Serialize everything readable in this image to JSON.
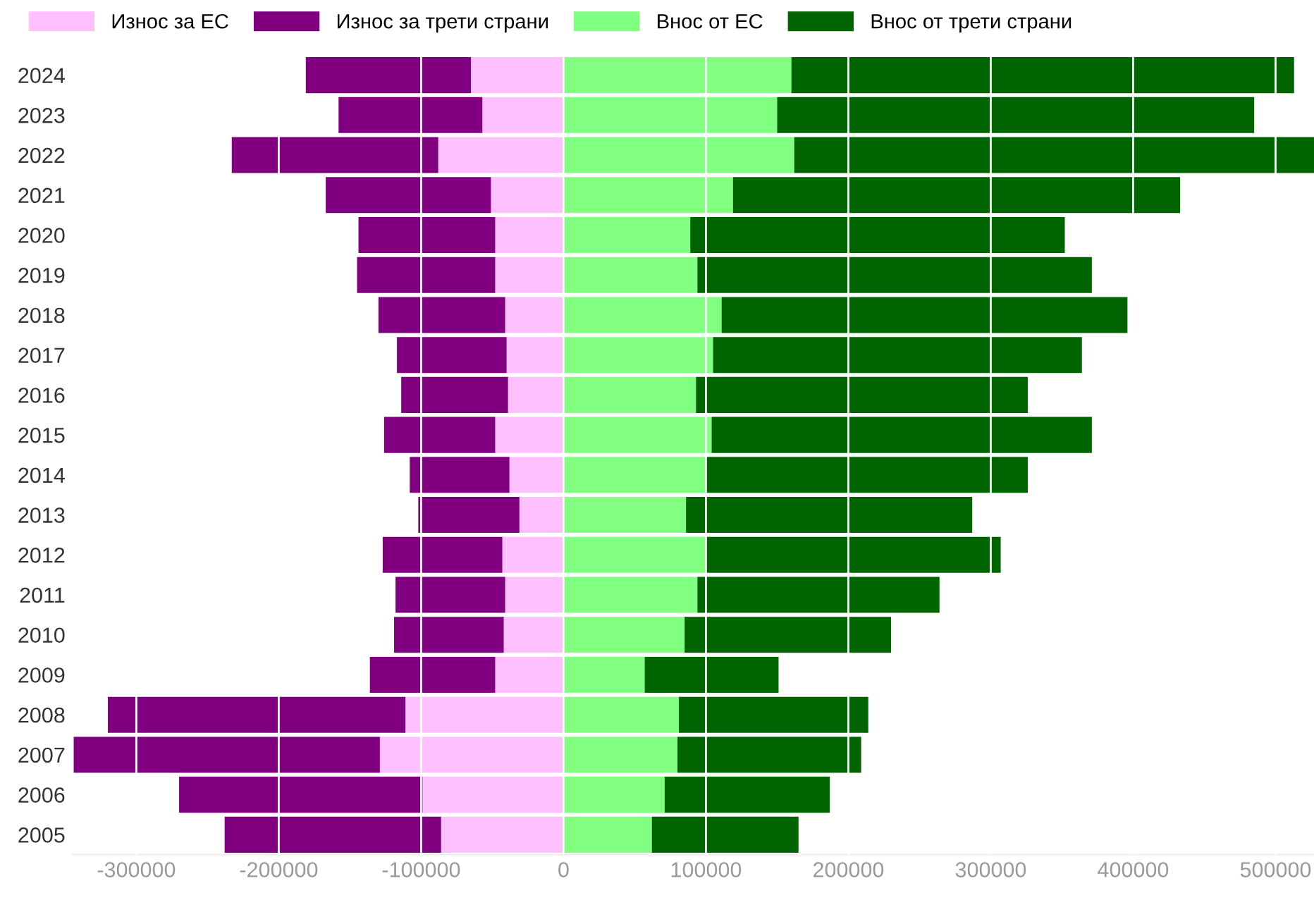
{
  "chart_data": {
    "type": "bar",
    "orientation": "horizontal",
    "stacked": true,
    "legend": "top left",
    "grid": "x",
    "categories": [
      "2024",
      "2023",
      "2022",
      "2021",
      "2020",
      "2019",
      "2018",
      "2017",
      "2016",
      "2015",
      "2014",
      "2013",
      "2012",
      "2011",
      "2010",
      "2009",
      "2008",
      "2007",
      "2006",
      "2005"
    ],
    "series": [
      {
        "name": "Износ за ЕС",
        "color": "#ffc0ff",
        "values": [
          -65000,
          -57000,
          -88000,
          -51000,
          -48000,
          -48000,
          -41000,
          -40000,
          -39000,
          -48000,
          -38000,
          -31000,
          -43000,
          -41000,
          -42000,
          -48000,
          -111000,
          -129000,
          -99000,
          -86000
        ]
      },
      {
        "name": "Износ за трети страни",
        "color": "#800080",
        "values": [
          -116000,
          -101000,
          -145000,
          -116000,
          -96000,
          -97000,
          -89000,
          -77000,
          -75000,
          -78000,
          -70000,
          -71000,
          -84000,
          -77000,
          -77000,
          -88000,
          -209000,
          -215000,
          -171000,
          -152000
        ]
      },
      {
        "name": "Внос от ЕС",
        "color": "#80ff80",
        "values": [
          160000,
          150000,
          162000,
          119000,
          89000,
          94000,
          111000,
          105000,
          93000,
          104000,
          100000,
          86000,
          100000,
          94000,
          85000,
          57000,
          81000,
          80000,
          71000,
          62000
        ]
      },
      {
        "name": "Внос от трети страни",
        "color": "#006400",
        "values": [
          353000,
          335000,
          365000,
          314000,
          263000,
          277000,
          285000,
          259000,
          233000,
          267000,
          226000,
          201000,
          207000,
          170000,
          145000,
          94000,
          133000,
          129000,
          116000,
          103000
        ]
      }
    ],
    "xlim": [
      -345000,
      527000
    ],
    "xticks": [
      -300000,
      -200000,
      -100000,
      0,
      100000,
      200000,
      300000,
      400000,
      500000
    ]
  }
}
